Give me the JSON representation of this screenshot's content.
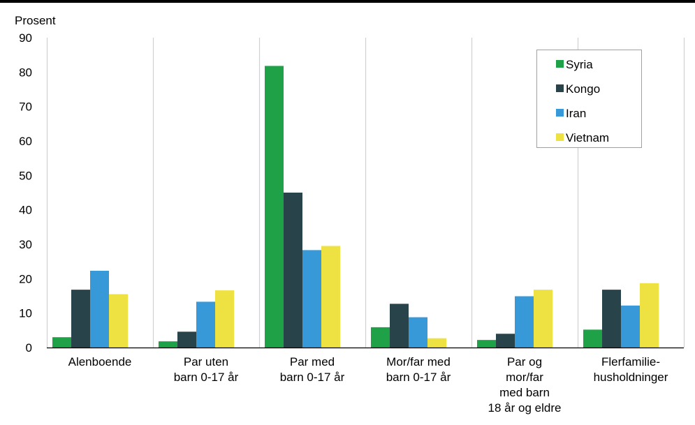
{
  "chart_data": {
    "type": "bar",
    "ylabel": "Prosent",
    "xlabel": "",
    "ylim": [
      0,
      90
    ],
    "yticks": [
      0,
      10,
      20,
      30,
      40,
      50,
      60,
      70,
      80,
      90
    ],
    "grid": "vertical separators between categories",
    "legend_position": "top-right",
    "categories": [
      [
        "Alenboende"
      ],
      [
        "Par uten",
        "barn 0-17 år"
      ],
      [
        "Par med",
        "barn 0-17 år"
      ],
      [
        "Mor/far med",
        "barn 0-17 år"
      ],
      [
        "Par og",
        "mor/far",
        "med barn",
        "18 år og eldre"
      ],
      [
        "Flerfamilie-",
        "husholdninger"
      ]
    ],
    "series": [
      {
        "name": "Syria",
        "color": "#1fa147",
        "values": [
          3,
          1.8,
          81.8,
          5.9,
          2.2,
          5.2
        ]
      },
      {
        "name": "Kongo",
        "color": "#28434a",
        "values": [
          16.8,
          4.6,
          45,
          12.7,
          4,
          16.8
        ]
      },
      {
        "name": "Iran",
        "color": "#3799d7",
        "values": [
          22.3,
          13.3,
          28.3,
          8.8,
          14.9,
          12.2
        ]
      },
      {
        "name": "Vietnam",
        "color": "#eee142",
        "values": [
          15.5,
          16.6,
          29.5,
          2.7,
          16.8,
          18.7
        ]
      }
    ]
  }
}
